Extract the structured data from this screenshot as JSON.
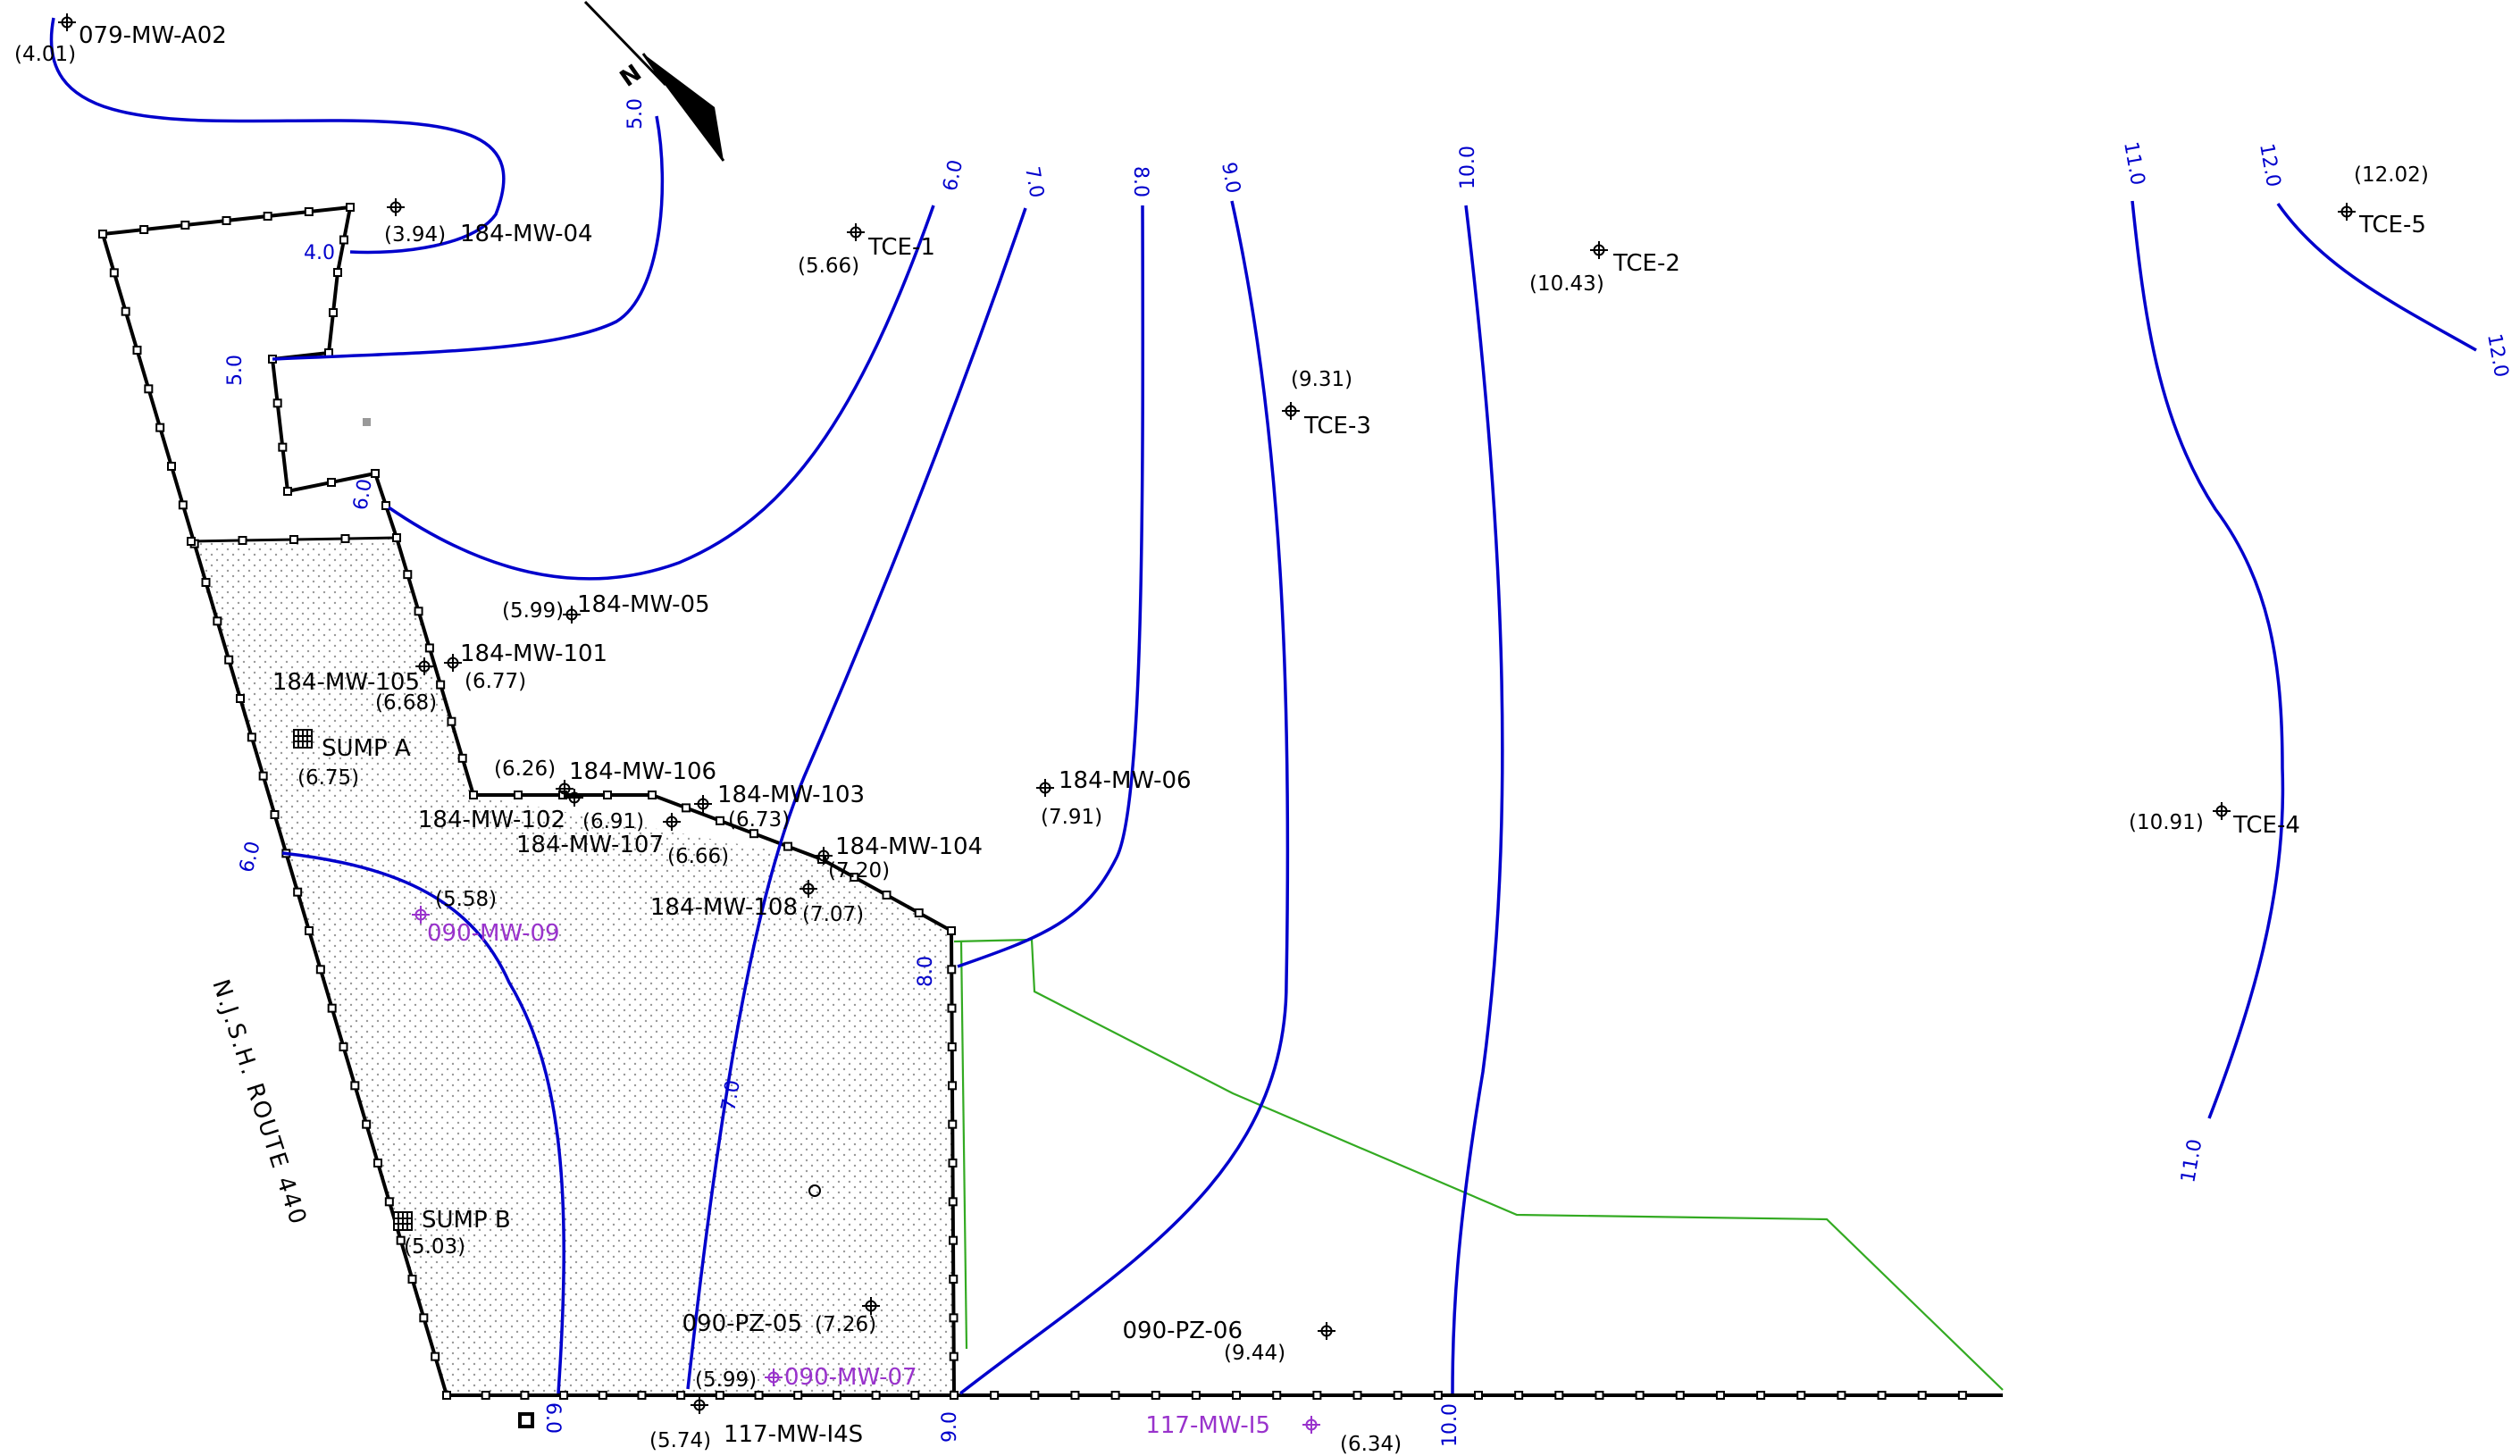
{
  "colors": {
    "contour": "#0000cc",
    "boundary": "#000000",
    "monitoring_well": "#000000",
    "offsite_well": "#9933cc",
    "green_line": "#33aa22",
    "stipple": "#999999"
  },
  "road_label": "N.J.S.H. ROUTE 440",
  "north_arrow": {
    "icon": "north-arrow-icon",
    "letter": "N"
  },
  "wells": [
    {
      "id": "079-MW-A02",
      "value": "(4.01)",
      "color": "black"
    },
    {
      "id": "184-MW-04",
      "value": "(3.94)",
      "color": "black"
    },
    {
      "id": "TCE-1",
      "value": "(5.66)",
      "color": "black"
    },
    {
      "id": "TCE-2",
      "value": "(10.43)",
      "color": "black"
    },
    {
      "id": "TCE-3",
      "value": "(9.31)",
      "color": "black"
    },
    {
      "id": "TCE-4",
      "value": "(10.91)",
      "color": "black"
    },
    {
      "id": "TCE-5",
      "value": "(12.02)",
      "color": "black"
    },
    {
      "id": "184-MW-05",
      "value": "(5.99)",
      "color": "black"
    },
    {
      "id": "184-MW-101",
      "value": "(6.77)",
      "color": "black"
    },
    {
      "id": "184-MW-105",
      "value": "(6.68)",
      "color": "black"
    },
    {
      "id": "184-MW-106",
      "value": "(6.26)",
      "color": "black"
    },
    {
      "id": "184-MW-103",
      "value": "(6.73)",
      "color": "black"
    },
    {
      "id": "184-MW-102",
      "value": "(6.91)",
      "color": "black"
    },
    {
      "id": "184-MW-107",
      "value": "(6.66)",
      "color": "black"
    },
    {
      "id": "184-MW-104",
      "value": "(7.20)",
      "color": "black"
    },
    {
      "id": "184-MW-108",
      "value": "(7.07)",
      "color": "black"
    },
    {
      "id": "184-MW-06",
      "value": "(7.91)",
      "color": "black"
    },
    {
      "id": "090-MW-09",
      "value": "(5.58)",
      "color": "purple"
    },
    {
      "id": "090-PZ-05",
      "value": "(7.26)",
      "color": "black"
    },
    {
      "id": "090-MW-07",
      "value": "(5.99)",
      "color": "purple"
    },
    {
      "id": "117-MW-I4S",
      "value": "(5.74)",
      "color": "black"
    },
    {
      "id": "090-PZ-06",
      "value": "(9.44)",
      "color": "black"
    },
    {
      "id": "117-MW-I5",
      "value": "(6.34)",
      "color": "purple"
    }
  ],
  "sumps": [
    {
      "id": "SUMP  A",
      "value": "(6.75)"
    },
    {
      "id": "SUMP  B",
      "value": "(5.03)"
    }
  ],
  "contours": [
    {
      "level": "4.0"
    },
    {
      "level": "5.0"
    },
    {
      "level": "6.0"
    },
    {
      "level": "7.0"
    },
    {
      "level": "8.0"
    },
    {
      "level": "9.0"
    },
    {
      "level": "10.0"
    },
    {
      "level": "11.0"
    },
    {
      "level": "12.0"
    }
  ]
}
